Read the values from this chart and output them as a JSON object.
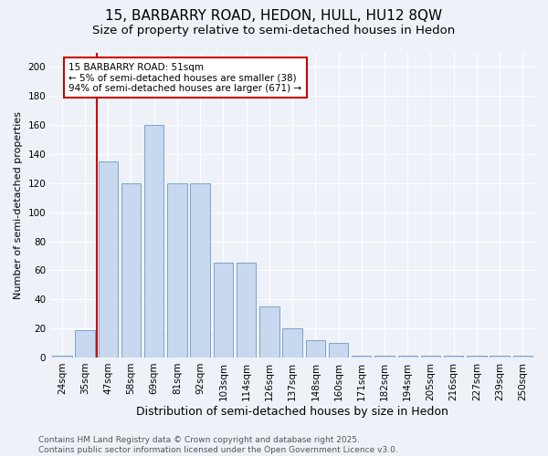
{
  "title": "15, BARBARRY ROAD, HEDON, HULL, HU12 8QW",
  "subtitle": "Size of property relative to semi-detached houses in Hedon",
  "xlabel": "Distribution of semi-detached houses by size in Hedon",
  "ylabel": "Number of semi-detached properties",
  "categories": [
    "24sqm",
    "35sqm",
    "47sqm",
    "58sqm",
    "69sqm",
    "81sqm",
    "92sqm",
    "103sqm",
    "114sqm",
    "126sqm",
    "137sqm",
    "148sqm",
    "160sqm",
    "171sqm",
    "182sqm",
    "194sqm",
    "205sqm",
    "216sqm",
    "227sqm",
    "239sqm",
    "250sqm"
  ],
  "values": [
    1,
    19,
    135,
    120,
    160,
    120,
    120,
    65,
    65,
    35,
    20,
    12,
    10,
    1,
    1,
    1,
    1,
    1,
    1,
    1,
    1
  ],
  "bar_color": "#c8d8ee",
  "bar_edge_color": "#7aa4cc",
  "property_line_x": 1.5,
  "property_line_color": "#cc0000",
  "annotation_text": "15 BARBARRY ROAD: 51sqm\n← 5% of semi-detached houses are smaller (38)\n94% of semi-detached houses are larger (671) →",
  "annotation_box_color": "#cc0000",
  "ylim": [
    0,
    210
  ],
  "yticks": [
    0,
    20,
    40,
    60,
    80,
    100,
    120,
    140,
    160,
    180,
    200
  ],
  "background_color": "#eef2f8",
  "grid_color": "#ffffff",
  "footer_text": "Contains HM Land Registry data © Crown copyright and database right 2025.\nContains public sector information licensed under the Open Government Licence v3.0.",
  "title_fontsize": 11,
  "subtitle_fontsize": 9.5,
  "xlabel_fontsize": 9,
  "ylabel_fontsize": 8,
  "tick_fontsize": 7.5,
  "footer_fontsize": 6.5
}
